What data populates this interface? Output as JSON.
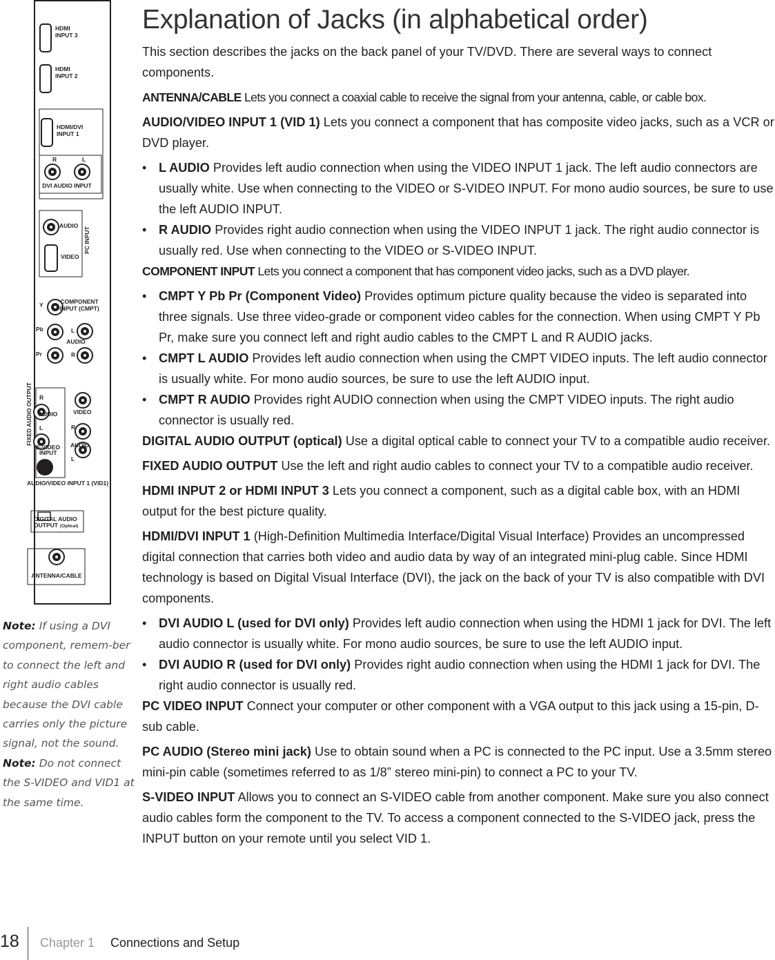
{
  "panel": {
    "labels": [
      "HDMI",
      "INPUT 3",
      "HDMI",
      "INPUT 2",
      "HDMI/DVI",
      "INPUT 1",
      "R",
      "L",
      "DVI AUDIO INPUT",
      "AUDIO",
      "VIDEO",
      "PC INPUT",
      "Y",
      "COMPONENT",
      "INPUT (CMPT)",
      "Pb",
      "L",
      "AUDIO",
      "Pr",
      "R",
      "FIXED AUDIO OUTPUT",
      "R",
      "AUDIO",
      "L",
      "VIDEO",
      "R",
      "AUDIO",
      "L",
      "S-VIDEO",
      "INPUT",
      "AUDIO/VIDEO INPUT 1 (VID1)",
      "DIGITAL AUDIO",
      "OUTPUT",
      "(Optical)",
      "ANTENNA/CABLE"
    ]
  },
  "notes": [
    {
      "label": "Note:",
      "text": "If using a DVI component, remem-ber to connect the left and right audio cables because the DVI cable carries only the picture signal, not the sound."
    },
    {
      "label": "Note:",
      "text": "Do not connect the S-VIDEO and VID1 at the same time."
    }
  ],
  "title": "Explanation of Jacks (in alphabetical order)",
  "intro": "This section describes the jacks on the back panel of your TV/DVD. There are several ways to connect components.",
  "entries": [
    {
      "term": "ANTENNA/CABLE",
      "text": "Lets you connect a coaxial cable to receive the signal from your antenna, cable, or cable box."
    },
    {
      "term": "AUDIO/VIDEO INPUT 1 (VID 1)",
      "text": "Lets you connect a component that has composite video jacks, such as a VCR or DVD player.",
      "bullets": [
        {
          "term": "L AUDIO",
          "text": "Provides left audio connection when using the VIDEO INPUT 1 jack. The left audio connectors are usually white. Use when connecting to the VIDEO or S-VIDEO INPUT.  For mono audio sources, be sure to use the left AUDIO INPUT."
        },
        {
          "term": "R AUDIO",
          "text": "Provides right audio connection when using the VIDEO INPUT 1 jack. The right audio connector is usually red. Use when connecting to the VIDEO or S-VIDEO INPUT."
        }
      ]
    },
    {
      "term": "COMPONENT INPUT",
      "text": "Lets you connect a component that has component video jacks, such as a DVD player.",
      "bullets": [
        {
          "term": "CMPT Y Pb Pr (Component Video)",
          "text": "Provides optimum picture quality because the video is separated into three signals. Use three video-grade or component video cables for the connection. When using CMPT Y Pb Pr, make sure you connect left and right audio cables to the CMPT L and R AUDIO jacks."
        },
        {
          "term": "CMPT L AUDIO",
          "text": "Provides left audio connection when using the CMPT VIDEO inputs. The left audio connector is usually white. For mono audio sources, be sure to use the left AUDIO input."
        },
        {
          "term": "CMPT R AUDIO",
          "text": "Provides right AUDIO connection when using the CMPT VIDEO inputs. The right audio connector is usually red."
        }
      ]
    },
    {
      "term": "DIGITAL AUDIO OUTPUT (optical)",
      "text": "Use a digital optical cable to connect your TV to a compatible audio receiver."
    },
    {
      "term": "FIXED AUDIO OUTPUT",
      "text": "Use the left and right audio cables to connect your TV to a compatible audio receiver."
    },
    {
      "term": "HDMI INPUT 2 or HDMI INPUT 3",
      "text": "Lets you connect a component, such as a digital cable box, with an HDMI output for the best picture quality."
    },
    {
      "term": "HDMI/DVI INPUT 1",
      "text": "(High-Definition Multimedia Interface/Digital Visual Interface) Provides an uncompressed digital connection that carries both video and audio data by way of an integrated mini-plug cable. Since HDMI technology is based on Digital Visual Interface (DVI), the jack on the back of your TV is also compatible with DVI components.",
      "bullets": [
        {
          "term": "DVI AUDIO L (used for DVI only)",
          "text": "Provides left audio connection when using the HDMI 1 jack for DVI. The left audio connector is usually white. For mono audio sources, be sure to use the left AUDIO input."
        },
        {
          "term": "DVI AUDIO R (used for DVI only)",
          "text": "Provides right audio connection when using the HDMI 1 jack for DVI. The right audio connector is usually red."
        }
      ]
    },
    {
      "term": "PC VIDEO INPUT",
      "text": "Connect your computer or other component with a VGA output to this jack using a 15-pin, D-sub cable."
    },
    {
      "term": "PC AUDIO (Stereo mini jack)",
      "text": "Use to obtain sound when a PC is connected to the PC input. Use a 3.5mm stereo mini-pin cable (sometimes referred to as 1/8” stereo mini-pin) to connect a PC to your TV."
    },
    {
      "term": "S-VIDEO INPUT",
      "text": "Allows you to connect an S-VIDEO cable from another component. Make sure you also connect audio cables form the component to the TV.  To access a component connected to the S-VIDEO jack, press the INPUT button on your remote until  you select VID 1."
    }
  ],
  "footer": {
    "page": "18",
    "chapter": "Chapter 1",
    "section": "Connections and Setup"
  }
}
